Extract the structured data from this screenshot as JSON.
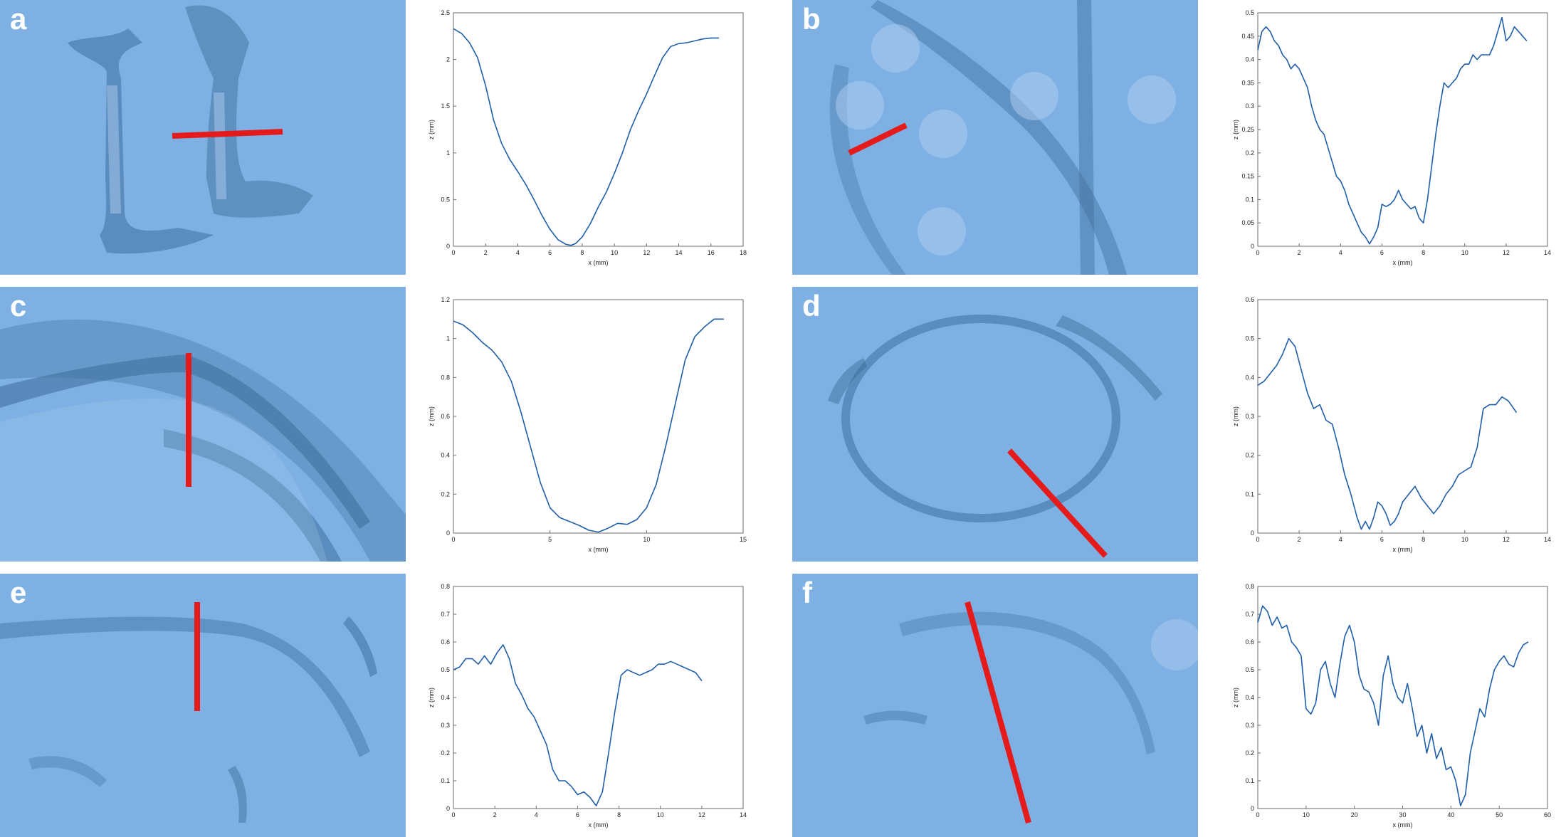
{
  "colors": {
    "scan_base": "#7fb0e3",
    "scan_shadow": "#3d6f9e",
    "scan_highlight": "#a9ccf0",
    "cut_line": "#e51b1b",
    "profile_line": "#1f5ea8",
    "axis": "#6b6b6b"
  },
  "panels": [
    {
      "letter": "a",
      "chart_data": {
        "type": "line",
        "xlabel": "x (mm)",
        "ylabel": "z (mm)",
        "xlim": [
          0,
          18
        ],
        "ylim": [
          0,
          2.5
        ],
        "xticks": [
          0,
          2,
          4,
          6,
          8,
          10,
          12,
          14,
          16,
          18
        ],
        "yticks": [
          0,
          0.5,
          1,
          1.5,
          2,
          2.5
        ],
        "x": [
          0,
          0.5,
          1,
          1.5,
          2,
          2.5,
          3,
          3.5,
          4,
          4.5,
          5,
          5.5,
          6,
          6.5,
          7,
          7.3,
          7.6,
          8,
          8.5,
          9,
          9.5,
          10,
          10.5,
          11,
          11.5,
          12,
          12.5,
          13,
          13.5,
          14,
          14.5,
          15,
          15.5,
          16,
          16.5
        ],
        "y": [
          2.33,
          2.28,
          2.18,
          2.02,
          1.72,
          1.35,
          1.1,
          0.93,
          0.8,
          0.66,
          0.5,
          0.33,
          0.18,
          0.07,
          0.02,
          0.01,
          0.03,
          0.1,
          0.24,
          0.42,
          0.58,
          0.78,
          1.0,
          1.25,
          1.45,
          1.63,
          1.83,
          2.02,
          2.14,
          2.17,
          2.18,
          2.2,
          2.22,
          2.23,
          2.23
        ]
      }
    },
    {
      "letter": "b",
      "chart_data": {
        "type": "line",
        "xlabel": "x (mm)",
        "ylabel": "z (mm)",
        "xlim": [
          0,
          14
        ],
        "ylim": [
          0,
          0.5
        ],
        "xticks": [
          0,
          2,
          4,
          6,
          8,
          10,
          12,
          14
        ],
        "yticks": [
          0,
          0.05,
          0.1,
          0.15,
          0.2,
          0.25,
          0.3,
          0.35,
          0.4,
          0.45,
          0.5
        ],
        "x": [
          0,
          0.2,
          0.4,
          0.6,
          0.8,
          1.0,
          1.2,
          1.4,
          1.6,
          1.8,
          2.0,
          2.2,
          2.4,
          2.6,
          2.8,
          3.0,
          3.2,
          3.4,
          3.6,
          3.8,
          4.0,
          4.2,
          4.4,
          4.6,
          4.8,
          5.0,
          5.2,
          5.4,
          5.6,
          5.8,
          6.0,
          6.2,
          6.4,
          6.6,
          6.8,
          7.0,
          7.2,
          7.4,
          7.6,
          7.8,
          8.0,
          8.2,
          8.4,
          8.6,
          8.8,
          9.0,
          9.2,
          9.4,
          9.6,
          9.8,
          10.0,
          10.2,
          10.4,
          10.6,
          10.8,
          11.0,
          11.2,
          11.4,
          11.6,
          11.8,
          12.0,
          12.2,
          12.4,
          12.6,
          12.8,
          13.0
        ],
        "y": [
          0.42,
          0.46,
          0.47,
          0.46,
          0.44,
          0.43,
          0.41,
          0.4,
          0.38,
          0.39,
          0.38,
          0.36,
          0.34,
          0.3,
          0.27,
          0.25,
          0.24,
          0.21,
          0.18,
          0.15,
          0.14,
          0.12,
          0.09,
          0.07,
          0.05,
          0.03,
          0.02,
          0.005,
          0.02,
          0.04,
          0.09,
          0.085,
          0.09,
          0.1,
          0.12,
          0.1,
          0.09,
          0.08,
          0.085,
          0.06,
          0.05,
          0.1,
          0.17,
          0.24,
          0.3,
          0.35,
          0.34,
          0.35,
          0.36,
          0.38,
          0.39,
          0.39,
          0.41,
          0.4,
          0.41,
          0.41,
          0.41,
          0.43,
          0.46,
          0.49,
          0.44,
          0.45,
          0.47,
          0.46,
          0.45,
          0.44
        ]
      }
    },
    {
      "letter": "c",
      "chart_data": {
        "type": "line",
        "xlabel": "x (mm)",
        "ylabel": "z (mm)",
        "xlim": [
          0,
          15
        ],
        "ylim": [
          0,
          1.2
        ],
        "xticks": [
          0,
          5,
          10,
          15
        ],
        "yticks": [
          0,
          0.2,
          0.4,
          0.6,
          0.8,
          1,
          1.2
        ],
        "x": [
          0,
          0.5,
          1,
          1.5,
          2,
          2.5,
          3,
          3.5,
          4,
          4.5,
          5,
          5.5,
          6,
          6.5,
          7,
          7.5,
          8,
          8.5,
          9,
          9.5,
          10,
          10.5,
          11,
          11.5,
          12,
          12.5,
          13,
          13.5,
          14
        ],
        "y": [
          1.09,
          1.07,
          1.03,
          0.98,
          0.94,
          0.88,
          0.78,
          0.62,
          0.44,
          0.26,
          0.13,
          0.08,
          0.06,
          0.04,
          0.015,
          0.005,
          0.025,
          0.05,
          0.045,
          0.07,
          0.13,
          0.25,
          0.45,
          0.67,
          0.89,
          1.01,
          1.06,
          1.1,
          1.1
        ]
      }
    },
    {
      "letter": "d",
      "chart_data": {
        "type": "line",
        "xlabel": "x (mm)",
        "ylabel": "z (mm)",
        "xlim": [
          0,
          14
        ],
        "ylim": [
          0,
          0.6
        ],
        "xticks": [
          0,
          2,
          4,
          6,
          8,
          10,
          12,
          14
        ],
        "yticks": [
          0,
          0.1,
          0.2,
          0.3,
          0.4,
          0.5,
          0.6
        ],
        "x": [
          0,
          0.3,
          0.6,
          0.9,
          1.2,
          1.5,
          1.8,
          2.1,
          2.4,
          2.7,
          3.0,
          3.3,
          3.6,
          3.9,
          4.2,
          4.5,
          4.8,
          5.0,
          5.2,
          5.4,
          5.6,
          5.8,
          6.0,
          6.2,
          6.4,
          6.6,
          6.8,
          7.0,
          7.3,
          7.6,
          7.9,
          8.2,
          8.5,
          8.8,
          9.1,
          9.4,
          9.7,
          10.0,
          10.3,
          10.6,
          10.9,
          11.2,
          11.5,
          11.8,
          12.1,
          12.5
        ],
        "y": [
          0.38,
          0.39,
          0.41,
          0.43,
          0.46,
          0.5,
          0.48,
          0.42,
          0.36,
          0.32,
          0.33,
          0.29,
          0.28,
          0.22,
          0.15,
          0.1,
          0.04,
          0.01,
          0.03,
          0.01,
          0.04,
          0.08,
          0.07,
          0.05,
          0.02,
          0.03,
          0.05,
          0.08,
          0.1,
          0.12,
          0.09,
          0.07,
          0.05,
          0.07,
          0.1,
          0.12,
          0.15,
          0.16,
          0.17,
          0.22,
          0.32,
          0.33,
          0.33,
          0.35,
          0.34,
          0.31
        ]
      }
    },
    {
      "letter": "e",
      "chart_data": {
        "type": "line",
        "xlabel": "x (mm)",
        "ylabel": "z (mm)",
        "xlim": [
          0,
          14
        ],
        "ylim": [
          0,
          0.8
        ],
        "xticks": [
          0,
          2,
          4,
          6,
          8,
          10,
          12,
          14
        ],
        "yticks": [
          0,
          0.1,
          0.2,
          0.3,
          0.4,
          0.5,
          0.6,
          0.7,
          0.8
        ],
        "x": [
          0,
          0.3,
          0.6,
          0.9,
          1.2,
          1.5,
          1.8,
          2.1,
          2.4,
          2.7,
          3.0,
          3.3,
          3.6,
          3.9,
          4.2,
          4.5,
          4.8,
          5.1,
          5.4,
          5.7,
          6.0,
          6.3,
          6.6,
          6.9,
          7.2,
          7.5,
          7.8,
          8.1,
          8.4,
          8.7,
          9.0,
          9.3,
          9.6,
          9.9,
          10.2,
          10.5,
          10.8,
          11.1,
          11.4,
          11.7,
          12.0
        ],
        "y": [
          0.5,
          0.51,
          0.54,
          0.54,
          0.52,
          0.55,
          0.52,
          0.56,
          0.59,
          0.54,
          0.45,
          0.41,
          0.36,
          0.33,
          0.28,
          0.23,
          0.14,
          0.1,
          0.1,
          0.08,
          0.05,
          0.06,
          0.04,
          0.01,
          0.06,
          0.2,
          0.35,
          0.48,
          0.5,
          0.49,
          0.48,
          0.49,
          0.5,
          0.52,
          0.52,
          0.53,
          0.52,
          0.51,
          0.5,
          0.49,
          0.46
        ]
      }
    },
    {
      "letter": "f",
      "chart_data": {
        "type": "line",
        "xlabel": "x (mm)",
        "ylabel": "z (mm)",
        "xlim": [
          0,
          60
        ],
        "ylim": [
          0,
          0.8
        ],
        "xticks": [
          0,
          10,
          20,
          30,
          40,
          50,
          60
        ],
        "yticks": [
          0,
          0.1,
          0.2,
          0.3,
          0.4,
          0.5,
          0.6,
          0.7,
          0.8
        ],
        "x": [
          0,
          1,
          2,
          3,
          4,
          5,
          6,
          7,
          8,
          9,
          10,
          11,
          12,
          13,
          14,
          15,
          16,
          17,
          18,
          19,
          20,
          21,
          22,
          23,
          24,
          25,
          26,
          27,
          28,
          29,
          30,
          31,
          32,
          33,
          34,
          35,
          36,
          37,
          38,
          39,
          40,
          41,
          42,
          43,
          44,
          45,
          46,
          47,
          48,
          49,
          50,
          51,
          52,
          53,
          54,
          55,
          56
        ],
        "y": [
          0.67,
          0.73,
          0.71,
          0.66,
          0.69,
          0.65,
          0.66,
          0.6,
          0.58,
          0.55,
          0.36,
          0.34,
          0.38,
          0.5,
          0.53,
          0.45,
          0.4,
          0.52,
          0.62,
          0.66,
          0.6,
          0.48,
          0.43,
          0.42,
          0.38,
          0.3,
          0.48,
          0.55,
          0.45,
          0.4,
          0.38,
          0.45,
          0.36,
          0.26,
          0.3,
          0.2,
          0.27,
          0.18,
          0.22,
          0.14,
          0.15,
          0.1,
          0.01,
          0.05,
          0.2,
          0.28,
          0.36,
          0.33,
          0.43,
          0.5,
          0.53,
          0.55,
          0.52,
          0.51,
          0.56,
          0.59,
          0.6
        ]
      }
    }
  ]
}
